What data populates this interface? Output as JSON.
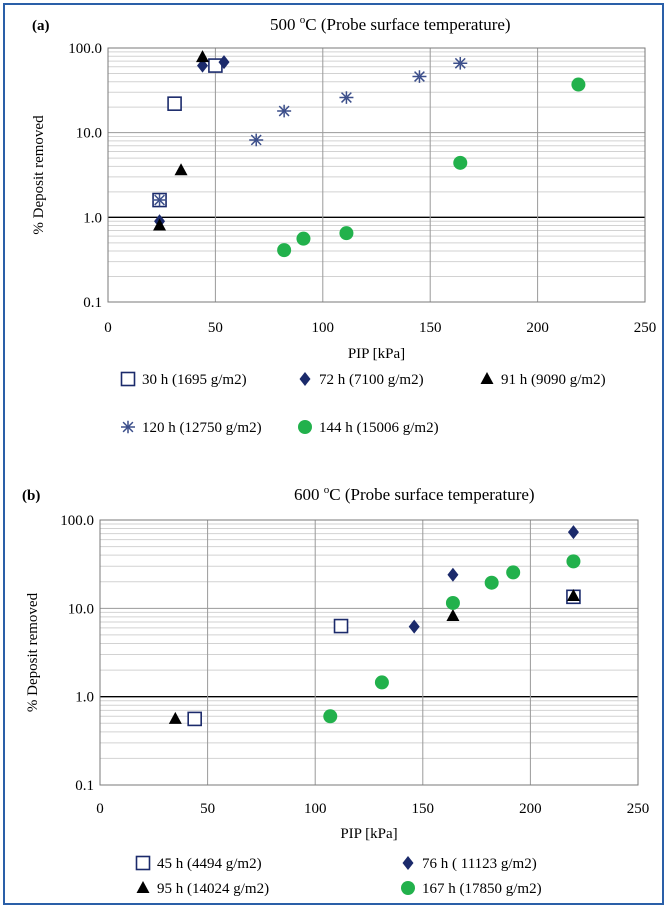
{
  "colors": {
    "frame": "#2a5fa8",
    "navy": "#1b2a6b",
    "star": "#3b4e8a",
    "black": "#000000",
    "green": "#22b14c",
    "grid": "#9a9a9a",
    "minor_grid": "#d2d2d2"
  },
  "chart_data": [
    {
      "type": "scatter",
      "panel_label": "(a)",
      "title_temp": "500",
      "title_super": "o",
      "title_rest": "C (Probe surface temperature)",
      "xlabel": "PIP [kPa]",
      "ylabel": "% Deposit removed",
      "xlim": [
        0,
        250
      ],
      "ylim": [
        0.1,
        100
      ],
      "yscale": "log",
      "x_ticks": [
        0,
        50,
        100,
        150,
        200,
        250
      ],
      "x_tick_labels": [
        "0",
        "50",
        "100",
        "150",
        "200",
        "250"
      ],
      "y_ticks": [
        0.1,
        1,
        10,
        100
      ],
      "y_tick_labels": [
        "0.1",
        "1.0",
        "10.0",
        "100.0"
      ],
      "grid": true,
      "legend_position": "bottom",
      "series": [
        {
          "name": "30 h (1695 g/m2)",
          "marker": "square-open",
          "color": "#1b2a6b",
          "x": [
            24,
            31,
            50
          ],
          "y": [
            1.6,
            22,
            62
          ]
        },
        {
          "name": "72 h (7100 g/m2)",
          "marker": "diamond",
          "color": "#1b2a6b",
          "x": [
            24,
            44,
            54
          ],
          "y": [
            0.9,
            62,
            68
          ]
        },
        {
          "name": "91 h (9090 g/m2)",
          "marker": "triangle",
          "color": "#000000",
          "x": [
            24,
            34,
            44
          ],
          "y": [
            0.8,
            3.6,
            78
          ]
        },
        {
          "name": "120 h (12750 g/m2)",
          "marker": "star",
          "color": "#3b4e8a",
          "x": [
            24,
            69,
            82,
            111,
            145,
            164
          ],
          "y": [
            1.6,
            8.2,
            18,
            26,
            46,
            66
          ]
        },
        {
          "name": "144 h (15006 g/m2)",
          "marker": "circle",
          "color": "#22b14c",
          "x": [
            82,
            91,
            111,
            164,
            219
          ],
          "y": [
            0.41,
            0.56,
            0.65,
            4.4,
            37
          ]
        }
      ]
    },
    {
      "type": "scatter",
      "panel_label": "(b)",
      "title_temp": "600",
      "title_super": "o",
      "title_rest": "C (Probe surface temperature)",
      "xlabel": "PIP [kPa]",
      "ylabel": "% Deposit removed",
      "xlim": [
        0,
        250
      ],
      "ylim": [
        0.1,
        100
      ],
      "yscale": "log",
      "x_ticks": [
        0,
        50,
        100,
        150,
        200,
        250
      ],
      "x_tick_labels": [
        "0",
        "50",
        "100",
        "150",
        "200",
        "250"
      ],
      "y_ticks": [
        0.1,
        1,
        10,
        100
      ],
      "y_tick_labels": [
        "0.1",
        "1.0",
        "10.0",
        "100.0"
      ],
      "grid": true,
      "legend_position": "bottom",
      "series": [
        {
          "name": "45 h (4494 g/m2)",
          "marker": "square-open",
          "color": "#1b2a6b",
          "x": [
            44,
            112,
            220
          ],
          "y": [
            0.56,
            6.3,
            13.5
          ]
        },
        {
          "name": "76 h ( 11123 g/m2)",
          "marker": "diamond",
          "color": "#1b2a6b",
          "x": [
            146,
            164,
            220
          ],
          "y": [
            6.2,
            24,
            73
          ]
        },
        {
          "name": "95 h (14024 g/m2)",
          "marker": "triangle",
          "color": "#000000",
          "x": [
            35,
            164,
            220
          ],
          "y": [
            0.56,
            8.2,
            13.8
          ]
        },
        {
          "name": "167 h (17850 g/m2)",
          "marker": "circle",
          "color": "#22b14c",
          "x": [
            107,
            131,
            164,
            182,
            192,
            220
          ],
          "y": [
            0.6,
            1.45,
            11.5,
            19.5,
            25.5,
            34
          ]
        }
      ]
    }
  ]
}
